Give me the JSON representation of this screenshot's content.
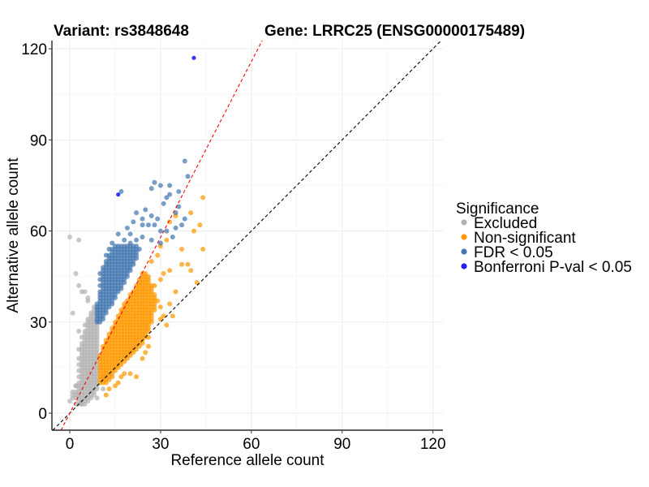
{
  "chart_data": {
    "type": "scatter",
    "title_left": "Variant: rs3848648",
    "title_right": "Gene: LRRC25 (ENSG00000175489)",
    "xlabel": "Reference allele count",
    "ylabel": "Alternative allele count",
    "xlim": [
      -5.9,
      123.3
    ],
    "ylim": [
      -5.6,
      122.7
    ],
    "x_ticks": [
      0,
      30,
      60,
      90,
      120
    ],
    "y_ticks": [
      0,
      30,
      60,
      90,
      120
    ],
    "grid": true,
    "reference_lines": [
      {
        "name": "identity",
        "slope": 1.0,
        "intercept": 0,
        "color": "#000000",
        "style": "dashed"
      },
      {
        "name": "expected-ratio",
        "slope": 1.93,
        "intercept": 0,
        "color": "#ff0000",
        "style": "dashed"
      }
    ],
    "legend": {
      "title": "Significance",
      "position": "right",
      "entries": [
        {
          "label": "Excluded",
          "color": "#b3b3b3"
        },
        {
          "label": "Non-significant",
          "color": "#ff9900"
        },
        {
          "label": "FDR < 0.05",
          "color": "#4477b0"
        },
        {
          "label": "Bonferroni P-val < 0.05",
          "color": "#1f1fff"
        }
      ]
    },
    "series": [
      {
        "name": "Excluded",
        "color": "#b3b3b3",
        "rows_alt_ref_range": [
          [
            3,
            2,
            5
          ],
          [
            4,
            3,
            6
          ],
          [
            5,
            1,
            7
          ],
          [
            6,
            2,
            8
          ],
          [
            7,
            1,
            8
          ],
          [
            8,
            3,
            9
          ],
          [
            9,
            2,
            9
          ],
          [
            10,
            3,
            9
          ],
          [
            11,
            4,
            9
          ],
          [
            12,
            3,
            9
          ],
          [
            13,
            4,
            9
          ],
          [
            14,
            3,
            9
          ],
          [
            15,
            4,
            9
          ],
          [
            16,
            3,
            9
          ],
          [
            17,
            4,
            9
          ],
          [
            18,
            3,
            9
          ],
          [
            19,
            4,
            9
          ],
          [
            20,
            4,
            9
          ],
          [
            21,
            3,
            9
          ],
          [
            22,
            4,
            9
          ],
          [
            23,
            4,
            9
          ],
          [
            24,
            5,
            9
          ],
          [
            25,
            4,
            9
          ],
          [
            26,
            5,
            9
          ],
          [
            27,
            5,
            9
          ],
          [
            28,
            6,
            9
          ],
          [
            29,
            5,
            9
          ],
          [
            30,
            6,
            9
          ],
          [
            31,
            6,
            9
          ],
          [
            32,
            7,
            9
          ],
          [
            33,
            7,
            9
          ],
          [
            34,
            8,
            9
          ],
          [
            35,
            8,
            9
          ]
        ],
        "points": [
          [
            0,
            58
          ],
          [
            3,
            57
          ],
          [
            2,
            46
          ],
          [
            3,
            42
          ],
          [
            1,
            33
          ],
          [
            6,
            37
          ],
          [
            6,
            38
          ],
          [
            4,
            40
          ],
          [
            5,
            40
          ],
          [
            0,
            4
          ],
          [
            1,
            6
          ],
          [
            2,
            9
          ],
          [
            11,
            12
          ],
          [
            11,
            8
          ],
          [
            4,
            3
          ],
          [
            9,
            5
          ],
          [
            3,
            27
          ]
        ]
      },
      {
        "name": "Non-significant",
        "color": "#ff9900",
        "rows_alt_ref_range": [
          [
            10,
            10,
            12
          ],
          [
            11,
            10,
            13
          ],
          [
            12,
            10,
            14
          ],
          [
            13,
            10,
            14
          ],
          [
            14,
            10,
            15
          ],
          [
            15,
            10,
            16
          ],
          [
            16,
            10,
            17
          ],
          [
            17,
            10,
            18
          ],
          [
            18,
            10,
            19
          ],
          [
            19,
            10,
            20
          ],
          [
            20,
            11,
            21
          ],
          [
            21,
            11,
            22
          ],
          [
            22,
            11,
            23
          ],
          [
            23,
            12,
            24
          ],
          [
            24,
            12,
            24
          ],
          [
            25,
            13,
            25
          ],
          [
            26,
            13,
            25
          ],
          [
            27,
            14,
            26
          ],
          [
            28,
            14,
            26
          ],
          [
            29,
            15,
            26
          ],
          [
            30,
            15,
            27
          ],
          [
            31,
            16,
            27
          ],
          [
            32,
            16,
            27
          ],
          [
            33,
            17,
            27
          ],
          [
            34,
            17,
            28
          ],
          [
            35,
            18,
            28
          ],
          [
            36,
            18,
            28
          ],
          [
            37,
            19,
            28
          ],
          [
            38,
            20,
            28
          ],
          [
            39,
            20,
            28
          ],
          [
            40,
            21,
            27
          ],
          [
            41,
            22,
            27
          ],
          [
            42,
            22,
            27
          ],
          [
            43,
            23,
            26
          ],
          [
            44,
            23,
            26
          ],
          [
            45,
            24,
            26
          ],
          [
            46,
            24,
            25
          ]
        ],
        "points": [
          [
            30,
            35
          ],
          [
            31,
            32
          ],
          [
            34,
            32
          ],
          [
            32,
            29
          ],
          [
            35,
            40
          ],
          [
            28,
            42
          ],
          [
            30,
            44
          ],
          [
            31,
            46
          ],
          [
            27,
            50
          ],
          [
            29,
            52
          ],
          [
            30,
            55
          ],
          [
            33,
            47
          ],
          [
            37,
            49
          ],
          [
            39,
            49
          ],
          [
            40,
            47
          ],
          [
            43,
            62
          ],
          [
            41,
            60
          ],
          [
            42,
            43
          ],
          [
            44,
            71
          ],
          [
            44,
            54
          ],
          [
            40,
            66
          ],
          [
            35,
            65
          ],
          [
            37,
            54
          ],
          [
            32,
            57
          ],
          [
            33,
            63
          ],
          [
            29,
            37
          ],
          [
            26,
            22
          ],
          [
            24,
            18
          ],
          [
            22,
            12
          ],
          [
            20,
            13
          ],
          [
            17,
            12
          ],
          [
            15,
            9
          ],
          [
            13,
            8
          ],
          [
            12,
            6
          ],
          [
            33,
            36
          ],
          [
            30,
            31
          ],
          [
            26,
            25
          ],
          [
            25,
            20
          ],
          [
            18,
            13
          ],
          [
            16,
            10
          ]
        ]
      },
      {
        "name": "FDR < 0.05",
        "color": "#4477b0",
        "rows_alt_ref_range": [
          [
            30,
            9,
            10
          ],
          [
            31,
            9,
            11
          ],
          [
            32,
            9,
            11
          ],
          [
            33,
            9,
            12
          ],
          [
            34,
            9,
            12
          ],
          [
            35,
            9,
            13
          ],
          [
            36,
            9,
            14
          ],
          [
            37,
            10,
            14
          ],
          [
            38,
            10,
            15
          ],
          [
            39,
            10,
            15
          ],
          [
            40,
            10,
            16
          ],
          [
            41,
            11,
            17
          ],
          [
            42,
            10,
            17
          ],
          [
            43,
            11,
            18
          ],
          [
            44,
            10,
            18
          ],
          [
            45,
            11,
            19
          ],
          [
            46,
            10,
            19
          ],
          [
            47,
            11,
            20
          ],
          [
            48,
            11,
            20
          ],
          [
            49,
            12,
            21
          ],
          [
            50,
            12,
            21
          ],
          [
            51,
            13,
            22
          ],
          [
            52,
            12,
            22
          ],
          [
            53,
            14,
            22
          ],
          [
            54,
            13,
            23
          ],
          [
            55,
            15,
            22
          ]
        ],
        "points": [
          [
            38,
            83
          ],
          [
            39,
            78
          ],
          [
            28,
            76
          ],
          [
            27,
            74
          ],
          [
            30,
            75
          ],
          [
            33,
            75
          ],
          [
            33,
            72
          ],
          [
            17,
            73
          ],
          [
            31,
            69
          ],
          [
            36,
            68
          ],
          [
            27,
            65
          ],
          [
            35,
            66
          ],
          [
            29,
            64
          ],
          [
            24,
            64
          ],
          [
            24,
            62
          ],
          [
            26,
            62
          ],
          [
            28,
            62
          ],
          [
            35,
            61
          ],
          [
            37,
            62
          ],
          [
            38,
            64
          ],
          [
            32,
            60
          ],
          [
            20,
            56
          ],
          [
            18,
            57
          ],
          [
            14,
            56
          ],
          [
            22,
            57
          ],
          [
            24,
            58
          ],
          [
            27,
            57
          ],
          [
            30,
            56
          ],
          [
            34,
            58
          ],
          [
            30,
            60
          ],
          [
            20,
            59
          ],
          [
            16,
            59
          ],
          [
            19,
            61
          ],
          [
            21,
            63
          ],
          [
            25,
            67
          ],
          [
            22,
            66
          ],
          [
            32,
            71
          ],
          [
            36,
            73
          ]
        ]
      },
      {
        "name": "Bonferroni P-val < 0.05",
        "color": "#1f1fff",
        "rows_alt_ref_range": [],
        "points": [
          [
            16,
            72
          ],
          [
            41,
            117
          ]
        ]
      }
    ]
  }
}
